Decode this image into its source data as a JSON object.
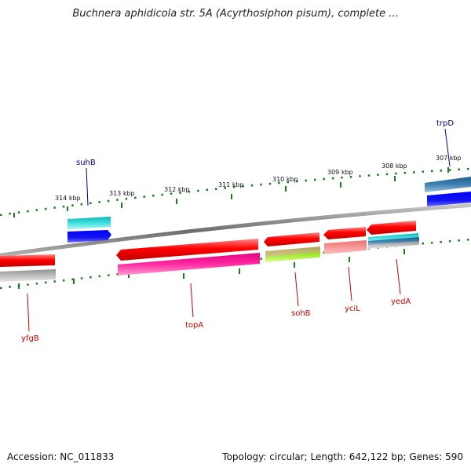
{
  "header": {
    "title": "Buchnera aphidicola str. 5A (Acyrthosiphon pisum), complete ..."
  },
  "footer": {
    "accession": "Accession: NC_011833",
    "summary": "Topology: circular; Length: 642,122 bp; Genes: 590"
  },
  "scale": {
    "tick_labels": [
      "314 kbp",
      "313 kbp",
      "312 kbp",
      "311 kbp",
      "310 kbp",
      "309 kbp",
      "308 kbp",
      "307 kbp"
    ]
  },
  "genes": {
    "labels": [
      "suhB",
      "trpD",
      "yfgB",
      "topA",
      "sohB",
      "yciL",
      "yedA"
    ]
  },
  "colors": {
    "backbone": "#7a7a7a",
    "tick": "#1d7a1d",
    "label_forward": "#00008b",
    "label_reverse": "#cc0000"
  }
}
